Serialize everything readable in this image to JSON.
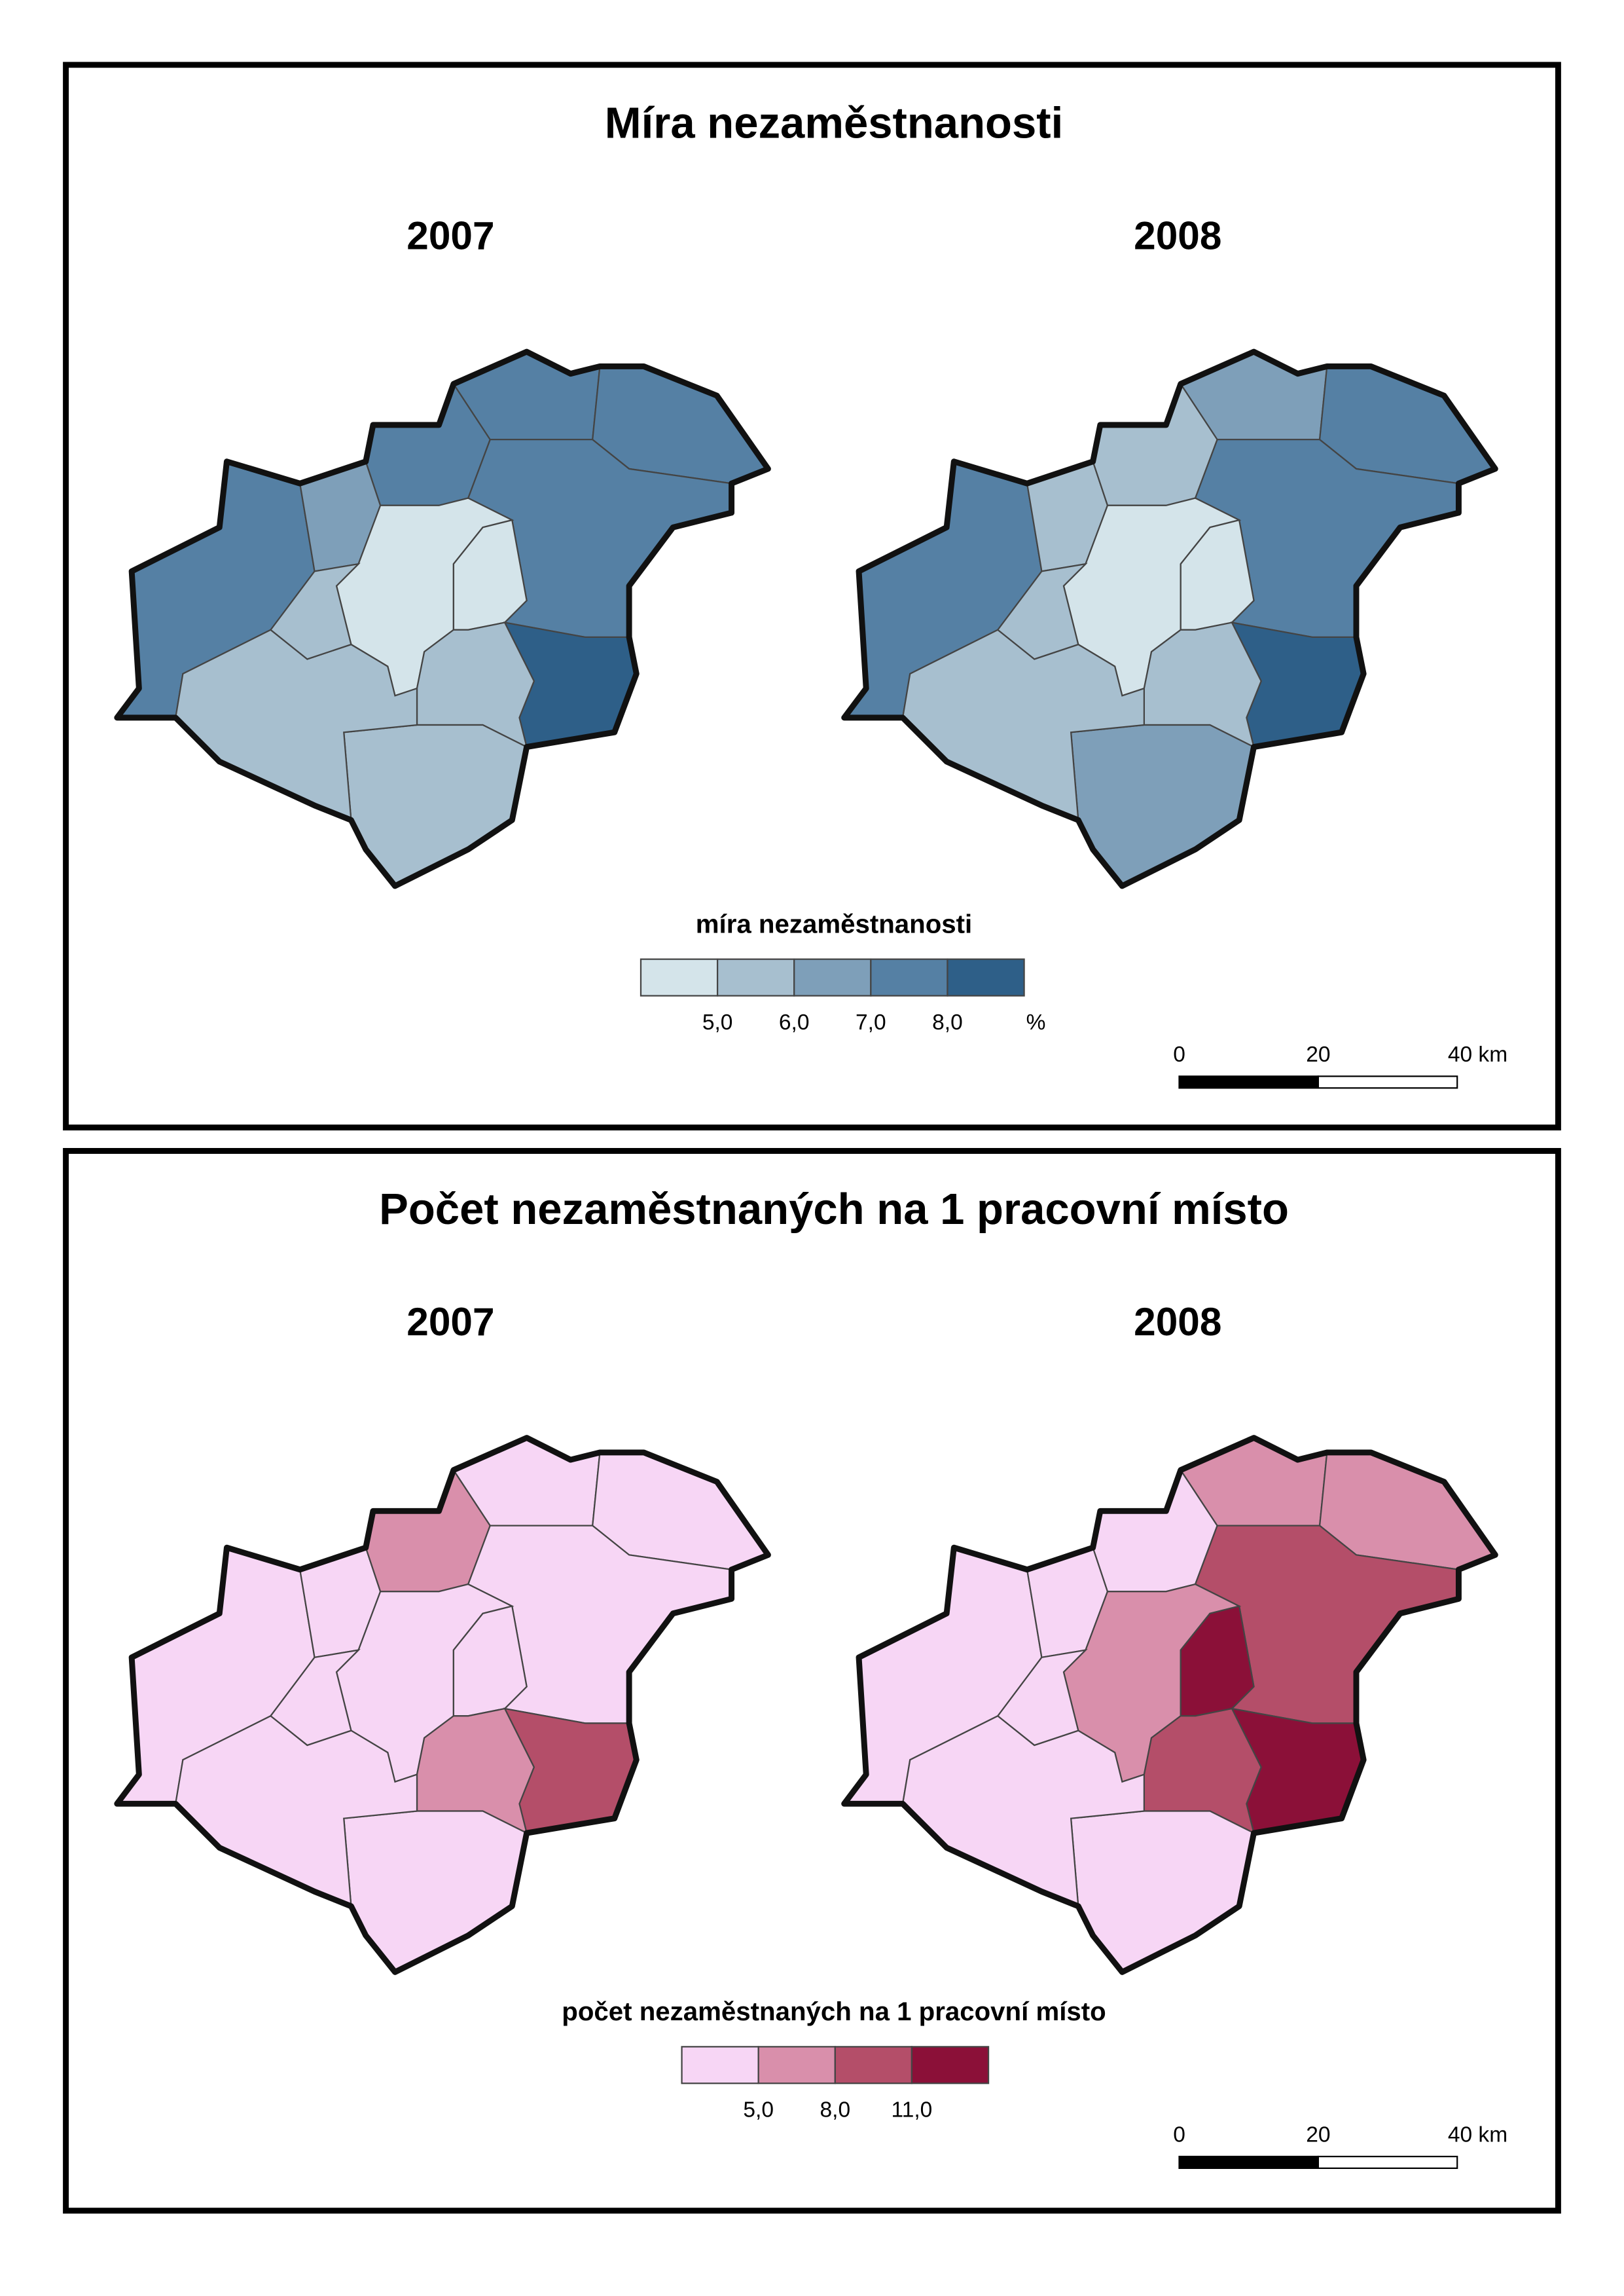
{
  "panels": [
    {
      "title": "Míra nezaměstnanosti",
      "maps": [
        {
          "year": "2007",
          "classes": [
            3,
            2,
            3,
            3,
            3,
            3,
            0,
            0,
            4,
            1,
            1,
            1,
            1
          ]
        },
        {
          "year": "2008",
          "classes": [
            3,
            1,
            1,
            2,
            3,
            3,
            0,
            0,
            4,
            1,
            2,
            1,
            1
          ]
        }
      ],
      "legend": {
        "title": "míra nezaměstnanosti",
        "colors": [
          "#d4e4ea",
          "#a7bfcf",
          "#7e9fb9",
          "#5580a4",
          "#2e5f88"
        ],
        "breaks": [
          "5,0",
          "6,0",
          "7,0",
          "8,0"
        ],
        "unit": "%"
      },
      "scale_bar": {
        "labels": [
          "0",
          "20",
          "40 km"
        ]
      }
    },
    {
      "title": "Počet nezaměstnaných na 1 pracovní místo",
      "maps": [
        {
          "year": "2007",
          "classes": [
            0,
            0,
            1,
            0,
            0,
            0,
            0,
            0,
            2,
            1,
            0,
            0,
            0
          ]
        },
        {
          "year": "2008",
          "classes": [
            0,
            0,
            0,
            1,
            1,
            2,
            1,
            3,
            3,
            2,
            0,
            0,
            0
          ]
        }
      ],
      "legend": {
        "title": "počet nezaměstnaných na 1 pracovní místo",
        "colors": [
          "#f7d6f5",
          "#d98fab",
          "#b44e69",
          "#8b1038"
        ],
        "breaks": [
          "5,0",
          "8,0",
          "11,0"
        ]
      },
      "scale_bar": {
        "labels": [
          "0",
          "20",
          "40 km"
        ]
      }
    }
  ]
}
